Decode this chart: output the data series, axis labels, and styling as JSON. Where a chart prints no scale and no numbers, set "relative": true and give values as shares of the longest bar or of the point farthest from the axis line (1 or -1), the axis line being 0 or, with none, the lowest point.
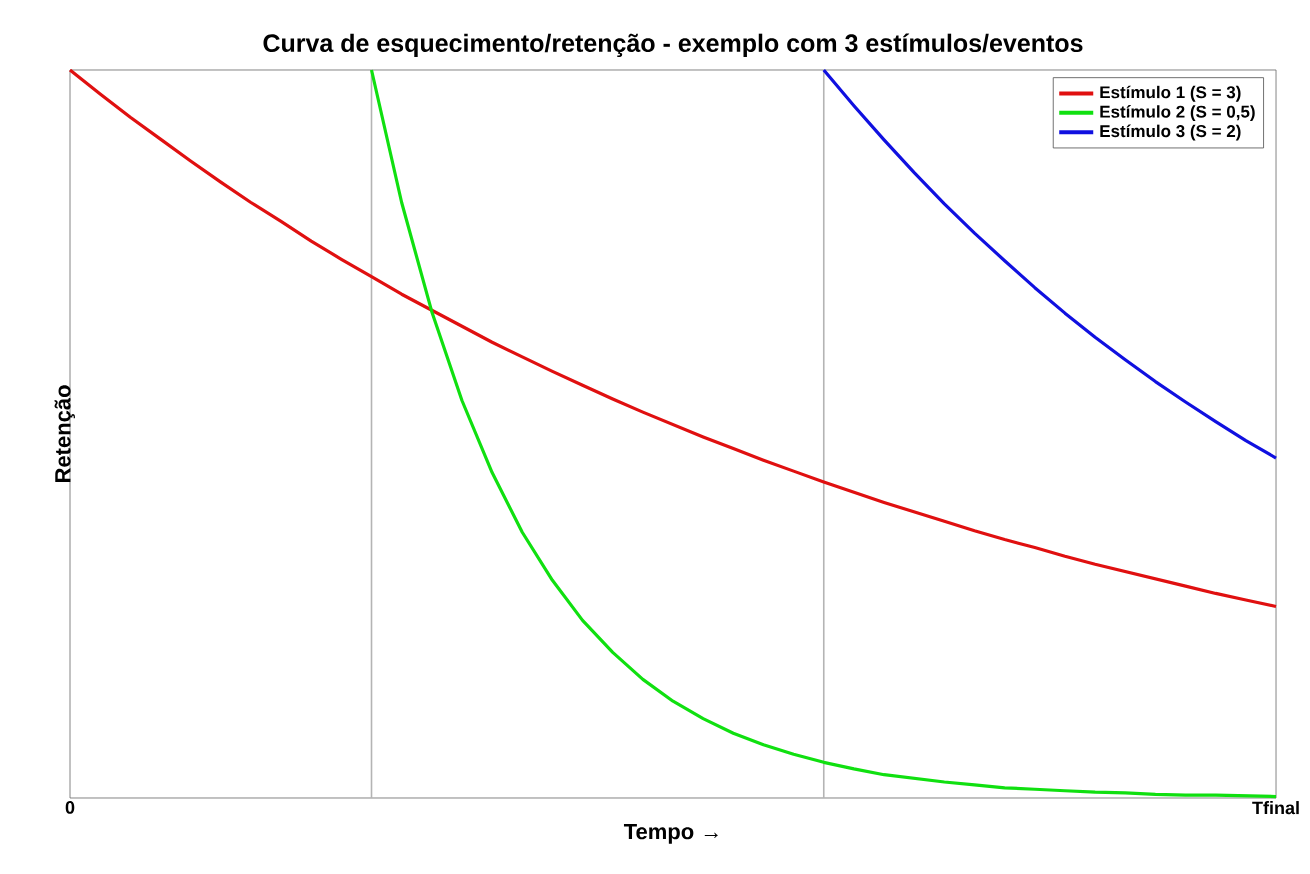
{
  "chart_data": {
    "type": "line",
    "title": "Curva de esquecimento/retenção - exemplo com 3 estímulos/eventos",
    "xlabel": "Tempo →",
    "ylabel": "Retenção",
    "relative": true,
    "legend": "top right",
    "categories": [
      "0",
      null,
      null,
      null,
      null,
      null,
      null,
      null,
      null,
      null,
      null,
      null,
      null,
      null,
      null,
      null,
      null,
      null,
      null,
      null,
      null,
      null,
      null,
      null,
      null,
      null,
      null,
      null,
      null,
      null,
      null,
      null,
      null,
      null,
      null,
      null,
      null,
      null,
      null,
      null,
      "Tfinal"
    ],
    "series": [
      {
        "name": "Estímulo 1 (S = 3)",
        "color": "#e01010",
        "values": [
          1.0,
          0.967,
          0.935,
          0.905,
          0.875,
          0.846,
          0.818,
          0.792,
          0.765,
          0.74,
          0.716,
          0.692,
          0.67,
          0.648,
          0.626,
          0.606,
          0.586,
          0.567,
          0.548,
          0.53,
          0.513,
          0.496,
          0.48,
          0.464,
          0.449,
          0.434,
          0.42,
          0.406,
          0.393,
          0.38,
          0.367,
          0.355,
          0.344,
          0.332,
          0.321,
          0.311,
          0.301,
          0.291,
          0.281,
          0.272,
          0.263
        ]
      },
      {
        "name": "Estímulo 2 (S = 0,5)",
        "color": "#10e010",
        "values": [
          null,
          null,
          null,
          null,
          null,
          null,
          null,
          null,
          null,
          null,
          1.0,
          0.818,
          0.668,
          0.546,
          0.447,
          0.365,
          0.299,
          0.244,
          0.2,
          0.163,
          0.133,
          0.109,
          0.089,
          0.073,
          0.06,
          0.049,
          0.04,
          0.032,
          0.027,
          0.022,
          0.018,
          0.014,
          0.012,
          0.01,
          0.008,
          0.007,
          0.005,
          0.004,
          0.004,
          0.003,
          0.002
        ]
      },
      {
        "name": "Estímulo 3 (S = 2)",
        "color": "#1010e0",
        "values": [
          null,
          null,
          null,
          null,
          null,
          null,
          null,
          null,
          null,
          null,
          null,
          null,
          null,
          null,
          null,
          null,
          null,
          null,
          null,
          null,
          null,
          null,
          null,
          null,
          null,
          1.0,
          0.951,
          0.904,
          0.859,
          0.816,
          0.776,
          0.738,
          0.701,
          0.666,
          0.633,
          0.602,
          0.572,
          0.544,
          0.517,
          0.491,
          0.467
        ]
      }
    ]
  }
}
